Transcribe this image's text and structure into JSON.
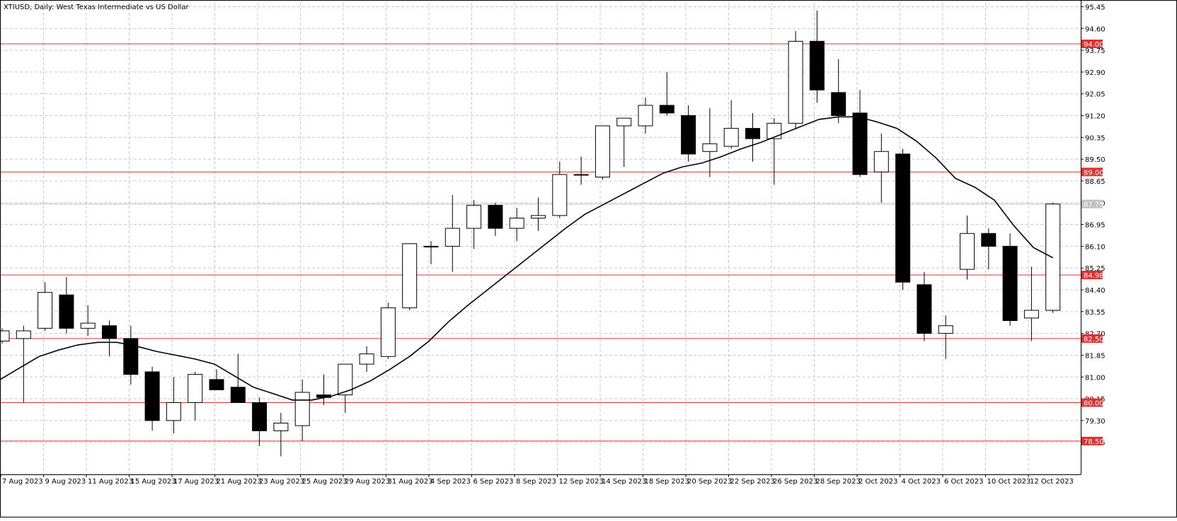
{
  "chart_data": {
    "type": "candlestick",
    "title": "XTIUSD, Daily:  West Texas Intermediate vs US Dollar",
    "ylim": [
      77.2,
      95.6
    ],
    "y_ticks": [
      "95.45",
      "94.60",
      "93.75",
      "92.90",
      "92.05",
      "91.20",
      "90.35",
      "89.50",
      "88.65",
      "87.80",
      "86.95",
      "86.10",
      "85.25",
      "84.40",
      "83.55",
      "82.70",
      "81.85",
      "81.00",
      "80.15",
      "79.30",
      "78.45"
    ],
    "x_labels": [
      "7 Aug 2023",
      "9 Aug 2023",
      "11 Aug 2023",
      "15 Aug 2023",
      "17 Aug 2023",
      "21 Aug 2023",
      "23 Aug 2023",
      "25 Aug 2023",
      "29 Aug 2023",
      "31 Aug 2023",
      "4 Sep 2023",
      "6 Sep 2023",
      "8 Sep 2023",
      "12 Sep 2023",
      "14 Sep 2023",
      "18 Sep 2023",
      "20 Sep 2023",
      "22 Sep 2023",
      "26 Sep 2023",
      "28 Sep 2023",
      "2 Oct 2023",
      "4 Oct 2023",
      "6 Oct 2023",
      "10 Oct 2023",
      "12 Oct 2023"
    ],
    "horizontal_levels": [
      {
        "value": 94.0,
        "label": "94.00"
      },
      {
        "value": 89.0,
        "label": "89.00"
      },
      {
        "value": 84.98,
        "label": "84.98"
      },
      {
        "value": 82.5,
        "label": "82.50"
      },
      {
        "value": 80.0,
        "label": "80.00"
      },
      {
        "value": 78.5,
        "label": "78.50"
      }
    ],
    "current_price": {
      "value": 87.75,
      "label": "87.75"
    },
    "candles": [
      {
        "date": "4 Aug 2023",
        "open": 82.4,
        "high": 82.9,
        "low": 82.3,
        "close": 82.8
      },
      {
        "date": "7 Aug 2023",
        "open": 82.5,
        "high": 83.0,
        "low": 80.0,
        "close": 82.8
      },
      {
        "date": "8 Aug 2023",
        "open": 82.9,
        "high": 84.7,
        "low": 82.8,
        "close": 84.3
      },
      {
        "date": "9 Aug 2023",
        "open": 84.2,
        "high": 84.9,
        "low": 82.7,
        "close": 82.9
      },
      {
        "date": "10 Aug 2023",
        "open": 82.9,
        "high": 83.8,
        "low": 82.6,
        "close": 83.1
      },
      {
        "date": "11 Aug 2023",
        "open": 83.0,
        "high": 83.2,
        "low": 81.8,
        "close": 82.5
      },
      {
        "date": "14 Aug 2023",
        "open": 82.5,
        "high": 83.0,
        "low": 80.7,
        "close": 81.1
      },
      {
        "date": "15 Aug 2023",
        "open": 81.2,
        "high": 81.4,
        "low": 78.9,
        "close": 79.3
      },
      {
        "date": "16 Aug 2023",
        "open": 79.3,
        "high": 81.0,
        "low": 78.8,
        "close": 80.0
      },
      {
        "date": "17 Aug 2023",
        "open": 80.0,
        "high": 81.2,
        "low": 79.3,
        "close": 81.1
      },
      {
        "date": "18 Aug 2023",
        "open": 80.9,
        "high": 81.3,
        "low": 80.5,
        "close": 80.5
      },
      {
        "date": "21 Aug 2023",
        "open": 80.6,
        "high": 81.9,
        "low": 80.0,
        "close": 80.0
      },
      {
        "date": "22 Aug 2023",
        "open": 80.0,
        "high": 80.2,
        "low": 78.3,
        "close": 78.9
      },
      {
        "date": "23 Aug 2023",
        "open": 78.9,
        "high": 79.6,
        "low": 77.9,
        "close": 79.2
      },
      {
        "date": "24 Aug 2023",
        "open": 79.1,
        "high": 80.9,
        "low": 78.5,
        "close": 80.4
      },
      {
        "date": "25 Aug 2023",
        "open": 80.3,
        "high": 81.1,
        "low": 79.9,
        "close": 80.2
      },
      {
        "date": "28 Aug 2023",
        "open": 80.3,
        "high": 81.5,
        "low": 79.6,
        "close": 81.5
      },
      {
        "date": "29 Aug 2023",
        "open": 81.5,
        "high": 82.2,
        "low": 81.2,
        "close": 81.9
      },
      {
        "date": "30 Aug 2023",
        "open": 81.8,
        "high": 83.9,
        "low": 81.7,
        "close": 83.7
      },
      {
        "date": "31 Aug 2023",
        "open": 83.7,
        "high": 86.2,
        "low": 83.6,
        "close": 86.2
      },
      {
        "date": "1 Sep 2023",
        "open": 86.1,
        "high": 86.3,
        "low": 85.4,
        "close": 86.1
      },
      {
        "date": "4 Sep 2023",
        "open": 86.1,
        "high": 88.1,
        "low": 85.1,
        "close": 86.8
      },
      {
        "date": "5 Sep 2023",
        "open": 86.8,
        "high": 87.9,
        "low": 86.0,
        "close": 87.7
      },
      {
        "date": "6 Sep 2023",
        "open": 87.7,
        "high": 87.8,
        "low": 86.5,
        "close": 86.8
      },
      {
        "date": "7 Sep 2023",
        "open": 86.8,
        "high": 87.6,
        "low": 86.3,
        "close": 87.2
      },
      {
        "date": "8 Sep 2023",
        "open": 87.2,
        "high": 88.0,
        "low": 86.7,
        "close": 87.3
      },
      {
        "date": "11 Sep 2023",
        "open": 87.3,
        "high": 89.4,
        "low": 87.2,
        "close": 88.9
      },
      {
        "date": "12 Sep 2023",
        "open": 88.9,
        "high": 89.6,
        "low": 88.5,
        "close": 88.9
      },
      {
        "date": "13 Sep 2023",
        "open": 88.8,
        "high": 90.8,
        "low": 88.7,
        "close": 90.8
      },
      {
        "date": "14 Sep 2023",
        "open": 90.8,
        "high": 91.1,
        "low": 89.2,
        "close": 91.1
      },
      {
        "date": "15 Sep 2023",
        "open": 90.8,
        "high": 91.9,
        "low": 90.5,
        "close": 91.6
      },
      {
        "date": "18 Sep 2023",
        "open": 91.6,
        "high": 92.9,
        "low": 91.2,
        "close": 91.3
      },
      {
        "date": "19 Sep 2023",
        "open": 91.2,
        "high": 91.6,
        "low": 89.4,
        "close": 89.7
      },
      {
        "date": "20 Sep 2023",
        "open": 89.8,
        "high": 91.5,
        "low": 88.8,
        "close": 90.1
      },
      {
        "date": "21 Sep 2023",
        "open": 90.0,
        "high": 91.8,
        "low": 89.9,
        "close": 90.7
      },
      {
        "date": "22 Sep 2023",
        "open": 90.7,
        "high": 91.3,
        "low": 89.4,
        "close": 90.3
      },
      {
        "date": "25 Sep 2023",
        "open": 90.3,
        "high": 91.1,
        "low": 88.5,
        "close": 90.9
      },
      {
        "date": "26 Sep 2023",
        "open": 90.9,
        "high": 94.5,
        "low": 90.7,
        "close": 94.1
      },
      {
        "date": "27 Sep 2023",
        "open": 94.1,
        "high": 95.3,
        "low": 91.7,
        "close": 92.2
      },
      {
        "date": "28 Sep 2023",
        "open": 92.1,
        "high": 93.4,
        "low": 90.9,
        "close": 91.2
      },
      {
        "date": "29 Sep 2023",
        "open": 91.3,
        "high": 92.2,
        "low": 88.8,
        "close": 88.9
      },
      {
        "date": "2 Oct 2023",
        "open": 89.0,
        "high": 90.5,
        "low": 87.8,
        "close": 89.8
      },
      {
        "date": "3 Oct 2023",
        "open": 89.7,
        "high": 89.9,
        "low": 84.4,
        "close": 84.7
      },
      {
        "date": "4 Oct 2023",
        "open": 84.6,
        "high": 85.1,
        "low": 82.4,
        "close": 82.7
      },
      {
        "date": "5 Oct 2023",
        "open": 82.7,
        "high": 83.4,
        "low": 81.7,
        "close": 83.0
      },
      {
        "date": "6 Oct 2023",
        "open": 85.2,
        "high": 87.3,
        "low": 84.8,
        "close": 86.6
      },
      {
        "date": "9 Oct 2023",
        "open": 86.6,
        "high": 86.8,
        "low": 85.2,
        "close": 86.1
      },
      {
        "date": "10 Oct 2023",
        "open": 86.1,
        "high": 86.6,
        "low": 83.0,
        "close": 83.2
      },
      {
        "date": "11 Oct 2023",
        "open": 83.3,
        "high": 85.3,
        "low": 82.4,
        "close": 83.6
      },
      {
        "date": "12 Oct 2023",
        "open": 83.6,
        "high": 87.8,
        "low": 83.5,
        "close": 87.75
      }
    ],
    "moving_average": [
      80.9,
      81.35,
      81.8,
      82.05,
      82.25,
      82.35,
      82.35,
      82.2,
      82.0,
      81.85,
      81.7,
      81.5,
      81.05,
      80.6,
      80.35,
      80.1,
      80.1,
      80.25,
      80.5,
      80.85,
      81.3,
      81.8,
      82.4,
      83.15,
      83.8,
      84.4,
      85.0,
      85.6,
      86.2,
      86.8,
      87.35,
      87.75,
      88.15,
      88.55,
      88.95,
      89.2,
      89.35,
      89.6,
      89.9,
      90.15,
      90.45,
      90.75,
      91.05,
      91.15,
      91.15,
      90.95,
      90.7,
      90.2,
      89.55,
      88.75,
      88.4,
      87.9,
      86.9,
      86.05,
      85.65
    ],
    "colors": {
      "bull_body": "#ffffff",
      "bear_body": "#000000",
      "outline": "#000000",
      "level_line": "#e03030",
      "level_tag_bg": "#e03030",
      "price_tag_bg": "#c0c0c0",
      "grid": "#c8c8c8",
      "ma_line": "#000000"
    }
  }
}
